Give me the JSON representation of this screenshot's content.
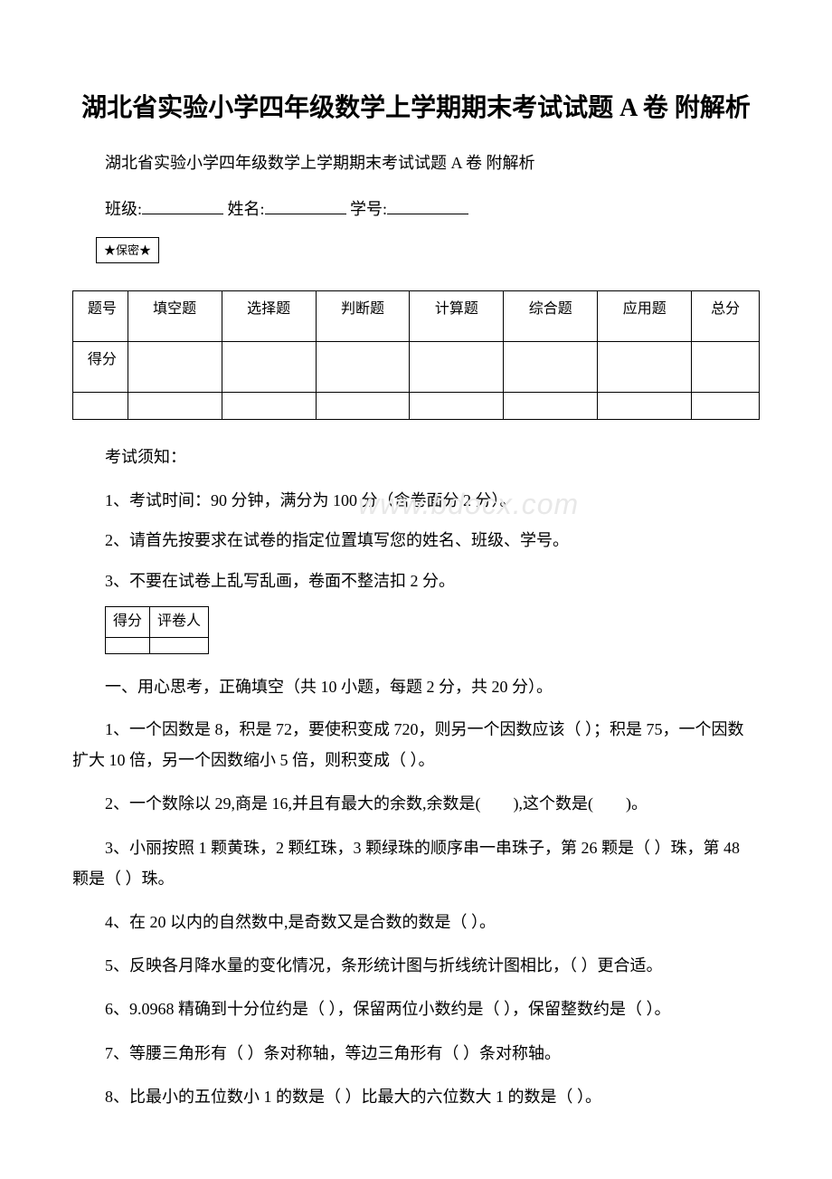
{
  "title": "湖北省实验小学四年级数学上学期期末考试试题 A 卷 附解析",
  "subtitle": "湖北省实验小学四年级数学上学期期末考试试题 A 卷 附解析",
  "info": {
    "class_label": "班级:",
    "name_label": "姓名:",
    "id_label": "学号:"
  },
  "secret_label": "★保密★",
  "score_table": {
    "headers": [
      "题号",
      "填空题",
      "选择题",
      "判断题",
      "计算题",
      "综合题",
      "应用题",
      "总分"
    ],
    "score_label": "得分"
  },
  "notice_title": "考试须知：",
  "notices": [
    "1、考试时间：90 分钟，满分为 100 分（含卷面分 2 分）。",
    "2、请首先按要求在试卷的指定位置填写您的姓名、班级、学号。",
    "3、不要在试卷上乱写乱画，卷面不整洁扣 2 分。"
  ],
  "small_table": {
    "score": "得分",
    "reviewer": "评卷人"
  },
  "section_title": "一、用心思考，正确填空（共 10 小题，每题 2 分，共 20 分）。",
  "questions": [
    "1、一个因数是 8，积是 72，要使积变成 720，则另一个因数应该（ ）；积是 75，一个因数扩大 10 倍，另一个因数缩小 5 倍，则积变成（ ）。",
    "2、一个数除以 29,商是 16,并且有最大的余数,余数是(　　),这个数是(　　)。",
    "3、小丽按照 1 颗黄珠，2 颗红珠，3 颗绿珠的顺序串一串珠子，第 26 颗是（ ）珠，第 48 颗是（ ）珠。",
    "4、在 20 以内的自然数中,是奇数又是合数的数是（ ）。",
    "5、反映各月降水量的变化情况，条形统计图与折线统计图相比，（ ）更合适。",
    "6、9.0968 精确到十分位约是（ ），保留两位小数约是（ ），保留整数约是（ ）。",
    "7、等腰三角形有（ ）条对称轴，等边三角形有（ ）条对称轴。",
    "8、比最小的五位数小 1 的数是（ ）比最大的六位数大 1 的数是（ ）。"
  ],
  "watermark": "www.bdocx.com"
}
